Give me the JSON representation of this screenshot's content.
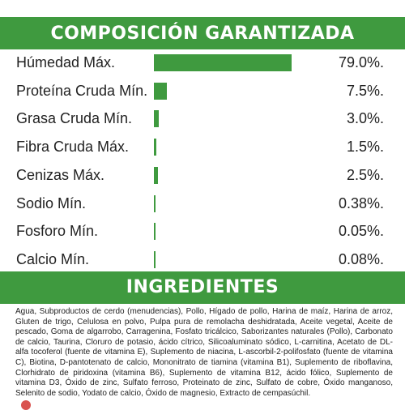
{
  "composition_title": "COMPOSICIÓN GARANTIZADA",
  "ingredients_title": "INGREDIENTES",
  "ingredients_text": "Agua, Subproductos de cerdo (menudencias), Pollo, Hígado de pollo, Harina de maíz, Harina de arroz, Gluten de trigo, Celulosa en polvo, Pulpa pura de remolacha deshidratada, Aceite vegetal, Aceite de pescado, Goma de algarrobo, Carragenina, Fosfato tricálcico, Saborizantes naturales (Pollo), Carbonato de calcio, Taurina, Cloruro de potasio, ácido cítrico, Silicoaluminato sódico, L-carnitina, Acetato de DL-alfa tocoferol (fuente de vitamina E), Suplemento de niacina, L-ascorbil-2-polifosfato (fuente de vitamina C), Biotina, D-pantotenato de calcio, Mononitrato de tiamina (vitamina B1), Suplemento de riboflavina, Clorhidrato de piridoxina (vitamina B6), Suplemento de vitamina B12, ácido fólico, Suplemento de vitamina D3, Óxido de zinc, Sulfato ferroso, Proteinato de zinc, Sulfato de cobre, Óxido manganoso, Selenito de sodio, Yodato de calcio, Óxido de magnesio, Extracto de cempasúchil.",
  "colors": {
    "accent": "#3f9a3f",
    "text": "#222222",
    "background": "#ffffff"
  },
  "chart_data": {
    "type": "bar",
    "orientation": "horizontal",
    "categories": [
      "Húmedad Máx.",
      "Proteína Cruda Mín.",
      "Grasa Cruda Mín.",
      "Fibra Cruda Máx.",
      "Cenizas Máx.",
      "Sodio Mín.",
      "Fosforo Mín.",
      "Calcio Mín."
    ],
    "values": [
      79.0,
      7.5,
      3.0,
      1.5,
      2.5,
      0.38,
      0.05,
      0.08
    ],
    "value_labels": [
      "79.0%.",
      "7.5%.",
      "3.0%.",
      "1.5%.",
      "2.5%.",
      "0.38%.",
      "0.05%.",
      "0.08%."
    ],
    "unit": "%",
    "xlim": [
      0,
      79.0
    ],
    "grid": false,
    "legend": "none"
  }
}
